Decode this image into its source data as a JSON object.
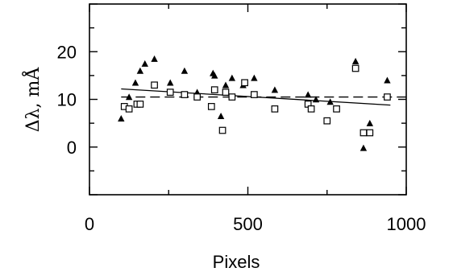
{
  "chart_data": {
    "type": "scatter",
    "title": "",
    "xlabel": "Pixels",
    "ylabel": "Δλ,  mÅ",
    "xlim": [
      0,
      1000
    ],
    "ylim": [
      -10,
      30
    ],
    "x_ticks": [
      0,
      500,
      1000
    ],
    "x_tick_labels": [
      "0",
      "500",
      "1000"
    ],
    "y_ticks": [
      0,
      10,
      20
    ],
    "y_tick_labels": [
      "0",
      "10",
      "20"
    ],
    "grid": false,
    "series": [
      {
        "marker": "filled-triangle",
        "color": "#000000",
        "points": [
          [
            100,
            6
          ],
          [
            125,
            10.5
          ],
          [
            145,
            13.5
          ],
          [
            160,
            16
          ],
          [
            175,
            17.5
          ],
          [
            205,
            18.5
          ],
          [
            255,
            13.5
          ],
          [
            300,
            16
          ],
          [
            340,
            11.5
          ],
          [
            390,
            15.5
          ],
          [
            395,
            15
          ],
          [
            415,
            6.5
          ],
          [
            430,
            13
          ],
          [
            450,
            14.5
          ],
          [
            485,
            13
          ],
          [
            520,
            14.5
          ],
          [
            585,
            12
          ],
          [
            690,
            11
          ],
          [
            715,
            10
          ],
          [
            760,
            9.5
          ],
          [
            840,
            18
          ],
          [
            865,
            -0.2
          ],
          [
            885,
            5
          ],
          [
            940,
            14
          ]
        ]
      },
      {
        "marker": "open-square",
        "color": "#000000",
        "points": [
          [
            110,
            8.5
          ],
          [
            125,
            8
          ],
          [
            150,
            9
          ],
          [
            160,
            9
          ],
          [
            205,
            13
          ],
          [
            255,
            11.5
          ],
          [
            300,
            11
          ],
          [
            340,
            10.5
          ],
          [
            385,
            8.5
          ],
          [
            395,
            12
          ],
          [
            420,
            3.5
          ],
          [
            430,
            11.5
          ],
          [
            450,
            10.5
          ],
          [
            490,
            13.5
          ],
          [
            520,
            11
          ],
          [
            585,
            8
          ],
          [
            690,
            9
          ],
          [
            700,
            8
          ],
          [
            750,
            5.5
          ],
          [
            780,
            8
          ],
          [
            840,
            16.5
          ],
          [
            865,
            3
          ],
          [
            885,
            3
          ],
          [
            940,
            10.5
          ]
        ]
      }
    ],
    "lines": [
      {
        "style": "solid",
        "x": [
          100,
          950
        ],
        "y": [
          12.2,
          8.8
        ]
      },
      {
        "style": "dashed",
        "x": [
          100,
          1000
        ],
        "y": [
          10.5,
          10.5
        ]
      }
    ]
  }
}
